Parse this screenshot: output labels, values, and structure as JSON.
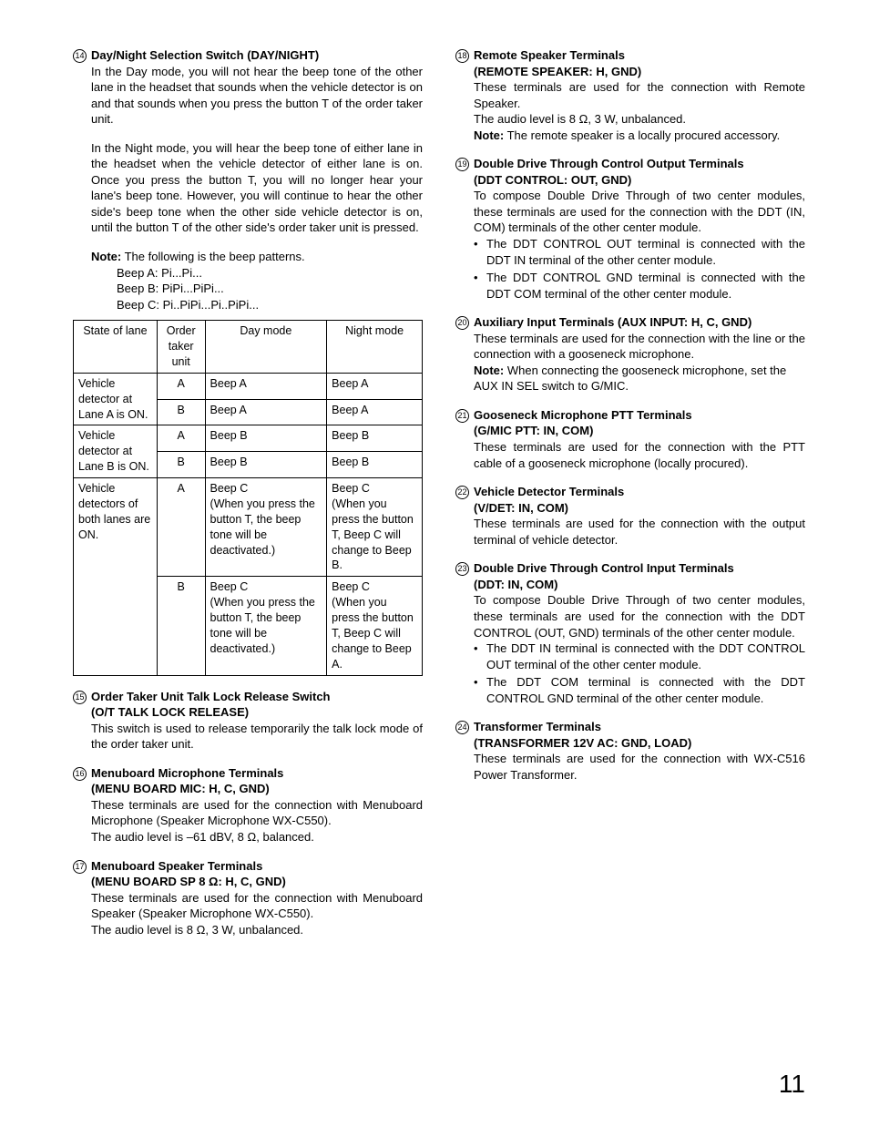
{
  "pageNumber": "11",
  "left": {
    "s14": {
      "num": "14",
      "title": "Day/Night Selection Switch (DAY/NIGHT)",
      "p1": "In the Day mode, you will not hear the beep tone of the other lane in the headset that sounds when the vehicle detector is on and that sounds when you press the button T of the order taker unit.",
      "p2": "In the Night mode, you will hear the beep tone of either lane in the headset when the vehicle detector of either lane is on. Once you press the button T, you will no longer hear your lane's beep tone. However, you will continue to hear the other side's beep tone when the other side vehicle detector is on, until the button T of the other side's order taker unit is pressed.",
      "noteLabel": "Note:",
      "noteText": "The following is the beep patterns.",
      "beepA": "Beep A: Pi...Pi...",
      "beepB": "Beep B: PiPi...PiPi...",
      "beepC": "Beep C: Pi..PiPi...Pi..PiPi...",
      "table": {
        "h1": "State of lane",
        "h2": "Order taker unit",
        "h3": "Day mode",
        "h4": "Night mode",
        "r1c1": "Vehicle detector at Lane A is ON.",
        "r1a_u": "A",
        "r1a_d": "Beep A",
        "r1a_n": "Beep A",
        "r1b_u": "B",
        "r1b_d": "Beep A",
        "r1b_n": "Beep A",
        "r2c1": "Vehicle detector at Lane B is ON.",
        "r2a_u": "A",
        "r2a_d": "Beep B",
        "r2a_n": "Beep B",
        "r2b_u": "B",
        "r2b_d": "Beep B",
        "r2b_n": "Beep B",
        "r3c1": "Vehicle detectors of both lanes are ON.",
        "r3a_u": "A",
        "r3a_d": "Beep C\n(When you press the button T, the beep tone will be deactivated.)",
        "r3a_n": "Beep C\n(When you press the button T, Beep C will change to Beep B.",
        "r3b_u": "B",
        "r3b_d": "Beep C\n(When you press the button T, the beep tone will be deactivated.)",
        "r3b_n": "Beep C\n(When you press the button T, Beep C will change to Beep A."
      }
    },
    "s15": {
      "num": "15",
      "title": "Order Taker Unit Talk Lock Release Switch",
      "sub": "(O/T TALK LOCK RELEASE)",
      "body": "This switch is used to release temporarily the talk lock mode of the order taker unit."
    },
    "s16": {
      "num": "16",
      "title": "Menuboard Microphone Terminals",
      "sub": "(MENU BOARD MIC: H, C, GND)",
      "body": "These terminals are used for the connection with Menuboard Microphone (Speaker Microphone WX-C550).",
      "body2": "The audio level is –61 dBV, 8 Ω, balanced."
    },
    "s17": {
      "num": "17",
      "title": "Menuboard Speaker Terminals",
      "sub": "(MENU BOARD SP 8 Ω: H, C, GND)",
      "body": "These terminals are used for the connection with Menuboard Speaker (Speaker Microphone WX-C550).",
      "body2": "The audio level is 8 Ω, 3 W, unbalanced."
    }
  },
  "right": {
    "s18": {
      "num": "18",
      "title": "Remote Speaker Terminals",
      "sub": "(REMOTE SPEAKER: H, GND)",
      "body": "These terminals are used for the connection with Remote Speaker.",
      "body2": "The audio level is 8 Ω, 3 W, unbalanced.",
      "noteLabel": "Note:",
      "noteText": "The remote speaker is a locally procured accessory."
    },
    "s19": {
      "num": "19",
      "title": "Double Drive Through Control Output Terminals",
      "sub": "(DDT CONTROL: OUT, GND)",
      "body": "To compose Double Drive Through of two center modules, these terminals are used for the connection with the DDT (IN, COM) terminals of the other center module.",
      "b1": "The DDT CONTROL OUT terminal is connected with the DDT IN terminal of the other center module.",
      "b2": "The DDT CONTROL GND terminal is connected with the DDT COM terminal of the other center module."
    },
    "s20": {
      "num": "20",
      "title": "Auxiliary Input Terminals (AUX INPUT: H, C, GND)",
      "body": "These terminals are used for the connection with the line or the connection with a gooseneck microphone.",
      "noteLabel": "Note:",
      "noteText": "When connecting the gooseneck microphone, set the AUX IN SEL switch to G/MIC."
    },
    "s21": {
      "num": "21",
      "title": "Gooseneck Microphone PTT Terminals",
      "sub": "(G/MIC PTT: IN, COM)",
      "body": "These terminals are used for the connection with the PTT cable of a gooseneck microphone (locally procured)."
    },
    "s22": {
      "num": "22",
      "title": "Vehicle Detector Terminals",
      "sub": "(V/DET: IN, COM)",
      "body": "These terminals are used for the connection with the output terminal of vehicle detector."
    },
    "s23": {
      "num": "23",
      "title": "Double Drive Through Control Input Terminals",
      "sub": "(DDT: IN, COM)",
      "body": "To compose Double Drive Through of two center modules, these terminals are used for the connection with the DDT CONTROL (OUT, GND) terminals of the other center module.",
      "b1": "The DDT IN terminal is connected with the DDT CONTROL OUT terminal of the other center module.",
      "b2": "The DDT COM terminal is connected with the DDT CONTROL GND terminal of the other center module."
    },
    "s24": {
      "num": "24",
      "title": "Transformer Terminals",
      "sub": "(TRANSFORMER 12V AC: GND, LOAD)",
      "body": "These terminals are used for the connection with WX-C516 Power Transformer."
    }
  }
}
